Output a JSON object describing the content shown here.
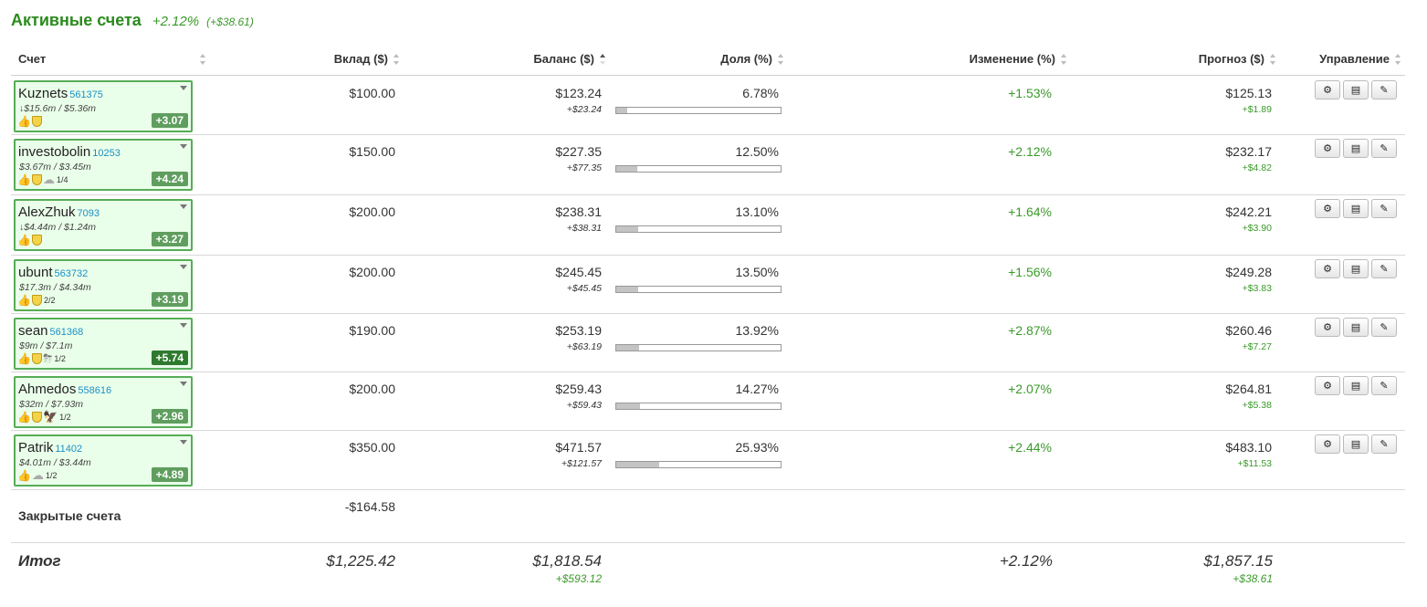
{
  "header": {
    "title": "Активные счета",
    "change_pct": "+2.12%",
    "change_abs": "(+$38.61)"
  },
  "columns": {
    "account": "Счет",
    "deposit": "Вклад ($)",
    "balance": "Баланс ($)",
    "share": "Доля (%)",
    "change": "Изменение (%)",
    "forecast": "Прогноз ($)",
    "controls": "Управление"
  },
  "rows": [
    {
      "name": "Kuznets",
      "id": "561375",
      "stats": "↓$15.6m / $5.36m",
      "icons": [
        "thumb",
        "shield"
      ],
      "frac": "",
      "score": "+3.07",
      "hot": false,
      "deposit": "$100.00",
      "balance": "$123.24",
      "balance_delta": "+$23.24",
      "share": "6.78%",
      "share_fill": 0.0678,
      "change": "+1.53%",
      "forecast": "$125.13",
      "forecast_delta": "+$1.89"
    },
    {
      "name": "investobolin",
      "id": "10253",
      "stats": "$3.67m / $3.45m",
      "icons": [
        "thumb",
        "shield",
        "cloud"
      ],
      "frac": "1/4",
      "score": "+4.24",
      "hot": false,
      "deposit": "$150.00",
      "balance": "$227.35",
      "balance_delta": "+$77.35",
      "share": "12.50%",
      "share_fill": 0.125,
      "change": "+2.12%",
      "forecast": "$232.17",
      "forecast_delta": "+$4.82"
    },
    {
      "name": "AlexZhuk",
      "id": "7093",
      "stats": "↓$4.44m / $1.24m",
      "icons": [
        "thumb",
        "shield"
      ],
      "frac": "",
      "score": "+3.27",
      "hot": false,
      "deposit": "$200.00",
      "balance": "$238.31",
      "balance_delta": "+$38.31",
      "share": "13.10%",
      "share_fill": 0.131,
      "change": "+1.64%",
      "forecast": "$242.21",
      "forecast_delta": "+$3.90"
    },
    {
      "name": "ubunt",
      "id": "563732",
      "stats": "$17.3m / $4.34m",
      "icons": [
        "thumb",
        "shield"
      ],
      "frac": "2/2",
      "score": "+3.19",
      "hot": false,
      "deposit": "$200.00",
      "balance": "$245.45",
      "balance_delta": "+$45.45",
      "share": "13.50%",
      "share_fill": 0.135,
      "change": "+1.56%",
      "forecast": "$249.28",
      "forecast_delta": "+$3.83"
    },
    {
      "name": "sean",
      "id": "561368",
      "stats": "$9m / $7.1m",
      "icons": [
        "thumb",
        "shield",
        "storm"
      ],
      "frac": "1/2",
      "score": "+5.74",
      "hot": true,
      "deposit": "$190.00",
      "balance": "$253.19",
      "balance_delta": "+$63.19",
      "share": "13.92%",
      "share_fill": 0.1392,
      "change": "+2.87%",
      "forecast": "$260.46",
      "forecast_delta": "+$7.27"
    },
    {
      "name": "Ahmedos",
      "id": "558616",
      "stats": "$32m / $7.93m",
      "icons": [
        "thumb",
        "shield",
        "eagle"
      ],
      "frac": "1/2",
      "score": "+2.96",
      "hot": false,
      "deposit": "$200.00",
      "balance": "$259.43",
      "balance_delta": "+$59.43",
      "share": "14.27%",
      "share_fill": 0.1427,
      "change": "+2.07%",
      "forecast": "$264.81",
      "forecast_delta": "+$5.38"
    },
    {
      "name": "Patrik",
      "id": "11402",
      "stats": "$4.01m / $3.44m",
      "icons": [
        "thumb",
        "cloud"
      ],
      "frac": "1/2",
      "score": "+4.89",
      "hot": false,
      "deposit": "$350.00",
      "balance": "$471.57",
      "balance_delta": "+$121.57",
      "share": "25.93%",
      "share_fill": 0.2593,
      "change": "+2.44%",
      "forecast": "$483.10",
      "forecast_delta": "+$11.53"
    }
  ],
  "closed": {
    "label": "Закрытые счета",
    "deposit": "-$164.58"
  },
  "total": {
    "label": "Итог",
    "deposit": "$1,225.42",
    "balance": "$1,818.54",
    "balance_delta": "+$593.12",
    "change": "+2.12%",
    "forecast": "$1,857.15",
    "forecast_delta": "+$38.61"
  },
  "icons": {
    "thumb": "thumbs-up-icon",
    "shield": "shield-icon",
    "cloud": "cloud-icon",
    "storm": "storm-cloud-icon",
    "eagle": "eagle-icon",
    "settings": "gear-icon",
    "list": "list-icon",
    "edit": "pencil-icon"
  },
  "colors": {
    "accent_green": "#2b8a1e",
    "positive": "#3a9a2a",
    "account_border": "#57ad57",
    "account_bg": "#eaffea",
    "score_badge": "#5f9e5f",
    "score_badge_hot": "#2f7a2f"
  }
}
